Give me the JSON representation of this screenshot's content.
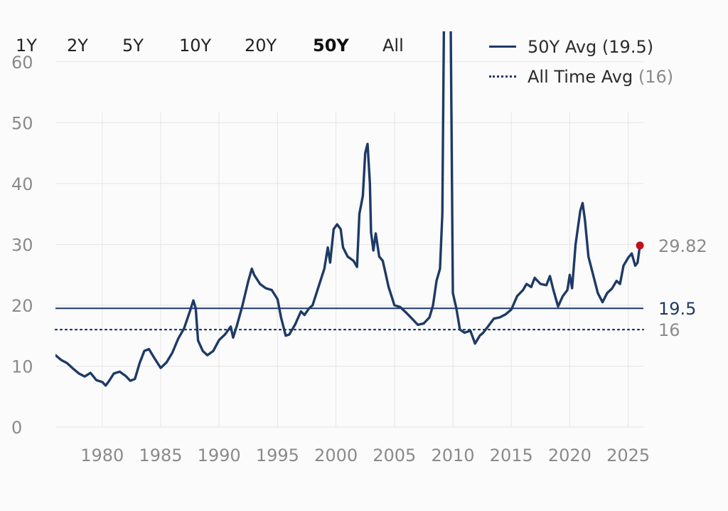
{
  "ranges": {
    "items": [
      "1Y",
      "2Y",
      "5Y",
      "10Y",
      "20Y",
      "50Y",
      "All"
    ],
    "active": "50Y"
  },
  "legend": {
    "avg50_label": "50Y Avg",
    "avg50_value": "(19.5)",
    "alltime_label": "All Time Avg",
    "alltime_value": "(16)"
  },
  "colors": {
    "line": "#1e3a66",
    "latest_marker": "#c0111f",
    "grid": "#e6e6e6",
    "tick_text": "#8a8a8a"
  },
  "chart_data": {
    "type": "line",
    "title": "",
    "xlabel": "",
    "ylabel": "",
    "xlim": [
      1976,
      2026.3
    ],
    "ylim": [
      0,
      65
    ],
    "y_ticks": [
      0,
      10,
      20,
      30,
      40,
      50,
      60
    ],
    "x_ticks": [
      1980,
      1985,
      1990,
      1995,
      2000,
      2005,
      2010,
      2015,
      2020,
      2025
    ],
    "grid": true,
    "legend_position": "top-right",
    "series": [
      {
        "name": "",
        "points": [
          [
            1976.0,
            11.8
          ],
          [
            1976.5,
            11.0
          ],
          [
            1977.0,
            10.5
          ],
          [
            1977.5,
            9.6
          ],
          [
            1978.0,
            8.8
          ],
          [
            1978.5,
            8.3
          ],
          [
            1979.0,
            8.9
          ],
          [
            1979.5,
            7.7
          ],
          [
            1980.0,
            7.4
          ],
          [
            1980.3,
            6.8
          ],
          [
            1980.6,
            7.6
          ],
          [
            1981.0,
            8.8
          ],
          [
            1981.5,
            9.1
          ],
          [
            1982.0,
            8.4
          ],
          [
            1982.4,
            7.6
          ],
          [
            1982.8,
            7.9
          ],
          [
            1983.2,
            10.5
          ],
          [
            1983.6,
            12.5
          ],
          [
            1984.0,
            12.8
          ],
          [
            1984.5,
            11.2
          ],
          [
            1985.0,
            9.7
          ],
          [
            1985.5,
            10.6
          ],
          [
            1986.0,
            12.2
          ],
          [
            1986.5,
            14.5
          ],
          [
            1987.0,
            16.2
          ],
          [
            1987.5,
            19.0
          ],
          [
            1987.8,
            20.8
          ],
          [
            1988.0,
            19.5
          ],
          [
            1988.2,
            14.2
          ],
          [
            1988.6,
            12.5
          ],
          [
            1989.0,
            11.8
          ],
          [
            1989.5,
            12.5
          ],
          [
            1990.0,
            14.3
          ],
          [
            1990.5,
            15.2
          ],
          [
            1991.0,
            16.5
          ],
          [
            1991.2,
            14.7
          ],
          [
            1991.5,
            16.5
          ],
          [
            1992.0,
            20.0
          ],
          [
            1992.5,
            24.0
          ],
          [
            1992.8,
            26.0
          ],
          [
            1993.0,
            25.0
          ],
          [
            1993.5,
            23.5
          ],
          [
            1994.0,
            22.8
          ],
          [
            1994.5,
            22.5
          ],
          [
            1995.0,
            21.0
          ],
          [
            1995.3,
            18.0
          ],
          [
            1995.7,
            15.0
          ],
          [
            1996.0,
            15.2
          ],
          [
            1996.5,
            16.8
          ],
          [
            1997.0,
            19.0
          ],
          [
            1997.3,
            18.4
          ],
          [
            1997.7,
            19.5
          ],
          [
            1998.0,
            20.0
          ],
          [
            1998.5,
            23.0
          ],
          [
            1999.0,
            26.0
          ],
          [
            1999.3,
            29.5
          ],
          [
            1999.5,
            27.0
          ],
          [
            1999.8,
            32.5
          ],
          [
            2000.1,
            33.3
          ],
          [
            2000.4,
            32.5
          ],
          [
            2000.6,
            29.5
          ],
          [
            2001.0,
            28.0
          ],
          [
            2001.5,
            27.3
          ],
          [
            2001.8,
            26.3
          ],
          [
            2002.0,
            35.0
          ],
          [
            2002.3,
            38.0
          ],
          [
            2002.5,
            45.0
          ],
          [
            2002.7,
            46.5
          ],
          [
            2002.9,
            40.0
          ],
          [
            2003.0,
            32.0
          ],
          [
            2003.2,
            29.0
          ],
          [
            2003.4,
            31.8
          ],
          [
            2003.7,
            28.0
          ],
          [
            2004.0,
            27.3
          ],
          [
            2004.5,
            23.0
          ],
          [
            2005.0,
            20.0
          ],
          [
            2005.5,
            19.7
          ],
          [
            2006.0,
            18.8
          ],
          [
            2006.5,
            17.8
          ],
          [
            2007.0,
            16.8
          ],
          [
            2007.5,
            17.0
          ],
          [
            2008.0,
            18.0
          ],
          [
            2008.3,
            20.0
          ],
          [
            2008.6,
            24.0
          ],
          [
            2008.9,
            26.0
          ],
          [
            2009.1,
            35.0
          ],
          [
            2009.25,
            70.0
          ],
          [
            2009.6,
            80.0
          ],
          [
            2009.8,
            70.0
          ],
          [
            2010.0,
            22.0
          ],
          [
            2010.3,
            19.5
          ],
          [
            2010.6,
            16.0
          ],
          [
            2011.0,
            15.5
          ],
          [
            2011.5,
            15.8
          ],
          [
            2011.9,
            13.7
          ],
          [
            2012.3,
            15.0
          ],
          [
            2012.6,
            15.5
          ],
          [
            2013.0,
            16.5
          ],
          [
            2013.5,
            17.8
          ],
          [
            2014.0,
            18.0
          ],
          [
            2014.5,
            18.5
          ],
          [
            2015.0,
            19.3
          ],
          [
            2015.5,
            21.5
          ],
          [
            2016.0,
            22.5
          ],
          [
            2016.3,
            23.5
          ],
          [
            2016.7,
            23.0
          ],
          [
            2017.0,
            24.5
          ],
          [
            2017.5,
            23.5
          ],
          [
            2018.0,
            23.3
          ],
          [
            2018.3,
            24.8
          ],
          [
            2018.6,
            22.5
          ],
          [
            2019.0,
            19.8
          ],
          [
            2019.4,
            21.5
          ],
          [
            2019.8,
            22.5
          ],
          [
            2020.0,
            25.0
          ],
          [
            2020.2,
            22.8
          ],
          [
            2020.5,
            30.0
          ],
          [
            2020.9,
            35.5
          ],
          [
            2021.1,
            36.8
          ],
          [
            2021.3,
            34.0
          ],
          [
            2021.6,
            28.0
          ],
          [
            2022.0,
            25.0
          ],
          [
            2022.4,
            22.0
          ],
          [
            2022.8,
            20.5
          ],
          [
            2023.2,
            22.0
          ],
          [
            2023.6,
            22.7
          ],
          [
            2024.0,
            24.0
          ],
          [
            2024.3,
            23.5
          ],
          [
            2024.6,
            26.5
          ],
          [
            2025.0,
            27.8
          ],
          [
            2025.3,
            28.5
          ],
          [
            2025.6,
            26.5
          ],
          [
            2025.8,
            27.0
          ],
          [
            2026.0,
            29.82
          ]
        ]
      }
    ],
    "reference_lines": [
      {
        "y": 19.5,
        "style": "solid",
        "label": "19.5"
      },
      {
        "y": 16,
        "style": "dotted",
        "label": "16"
      }
    ],
    "latest": {
      "x": 2026.0,
      "y": 29.82,
      "label": "29.82"
    }
  }
}
